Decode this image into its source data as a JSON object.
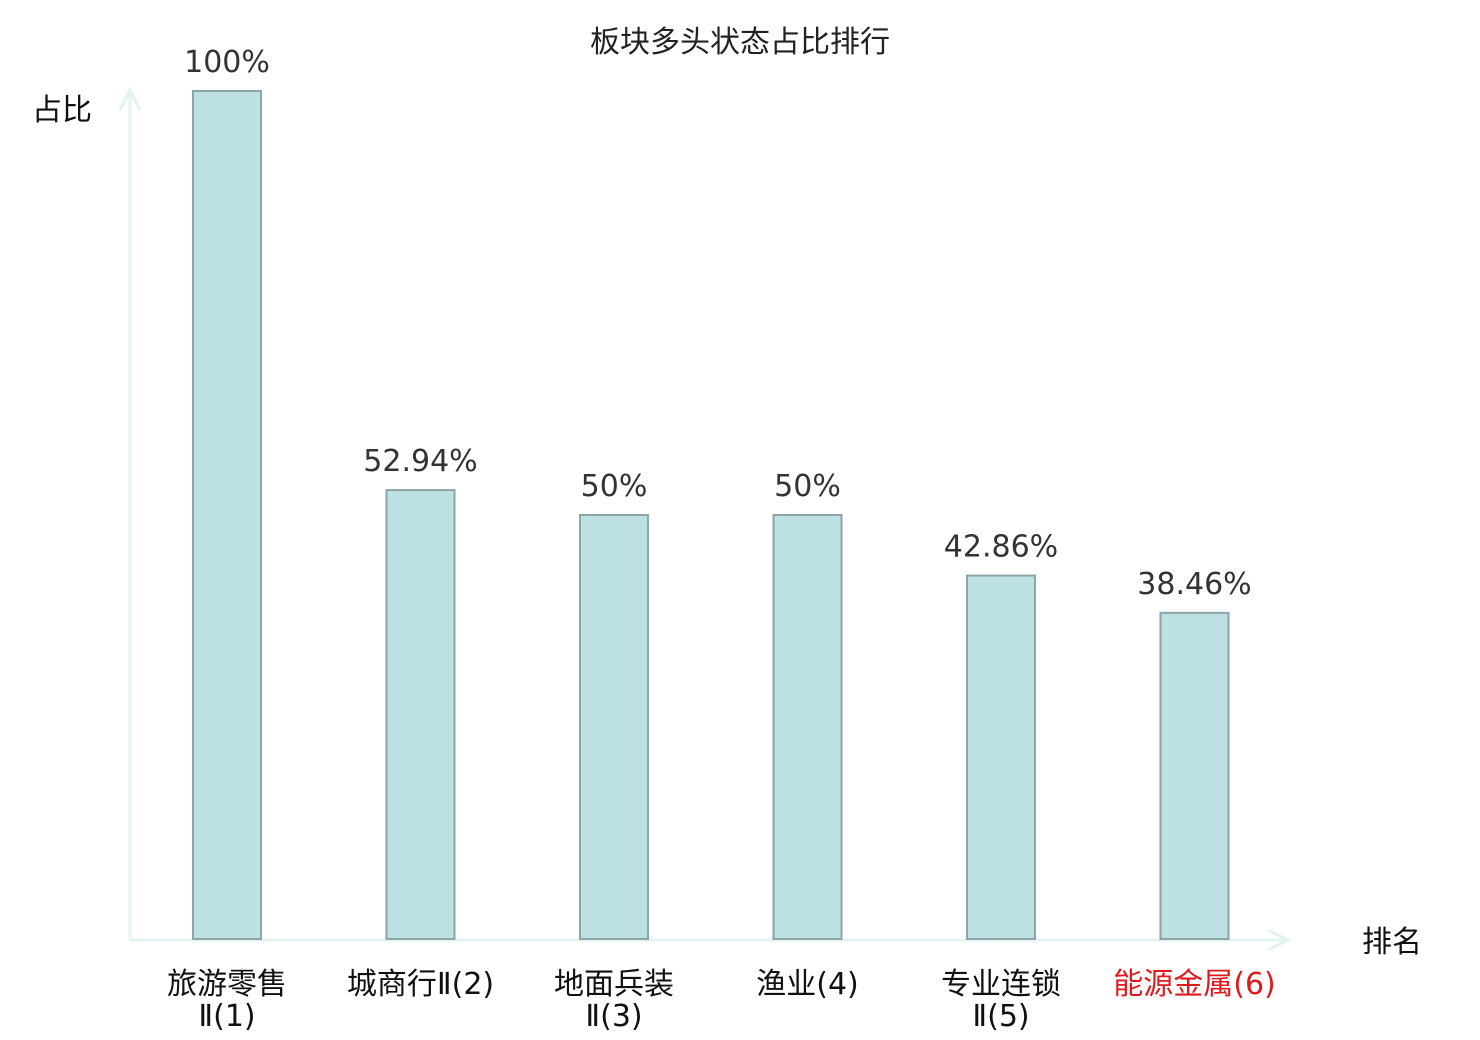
{
  "chart_data": {
    "type": "bar",
    "title": "板块多头状态占比排行",
    "ylabel": "占比",
    "xlabel": "排名",
    "ylim": [
      0,
      100
    ],
    "grid": false,
    "categories": [
      {
        "lines": [
          "旅游零售",
          "Ⅱ(1)"
        ],
        "color": "#111111"
      },
      {
        "lines": [
          "城商行Ⅱ(2)"
        ],
        "color": "#111111"
      },
      {
        "lines": [
          "地面兵装",
          "Ⅱ(3)"
        ],
        "color": "#111111"
      },
      {
        "lines": [
          "渔业(4)"
        ],
        "color": "#111111"
      },
      {
        "lines": [
          "专业连锁",
          "Ⅱ(5)"
        ],
        "color": "#111111"
      },
      {
        "lines": [
          "能源金属(6)"
        ],
        "color": "#e0191d"
      }
    ],
    "values": [
      100,
      52.94,
      50,
      50,
      42.86,
      38.46
    ],
    "value_labels": [
      "100%",
      "52.94%",
      "50%",
      "50%",
      "42.86%",
      "38.46%"
    ],
    "colors": {
      "bar_fill": "#bde0e2",
      "bar_stroke": "#8aa6a8",
      "axis": "#e2f3f1",
      "highlight": "#e0191d"
    }
  }
}
